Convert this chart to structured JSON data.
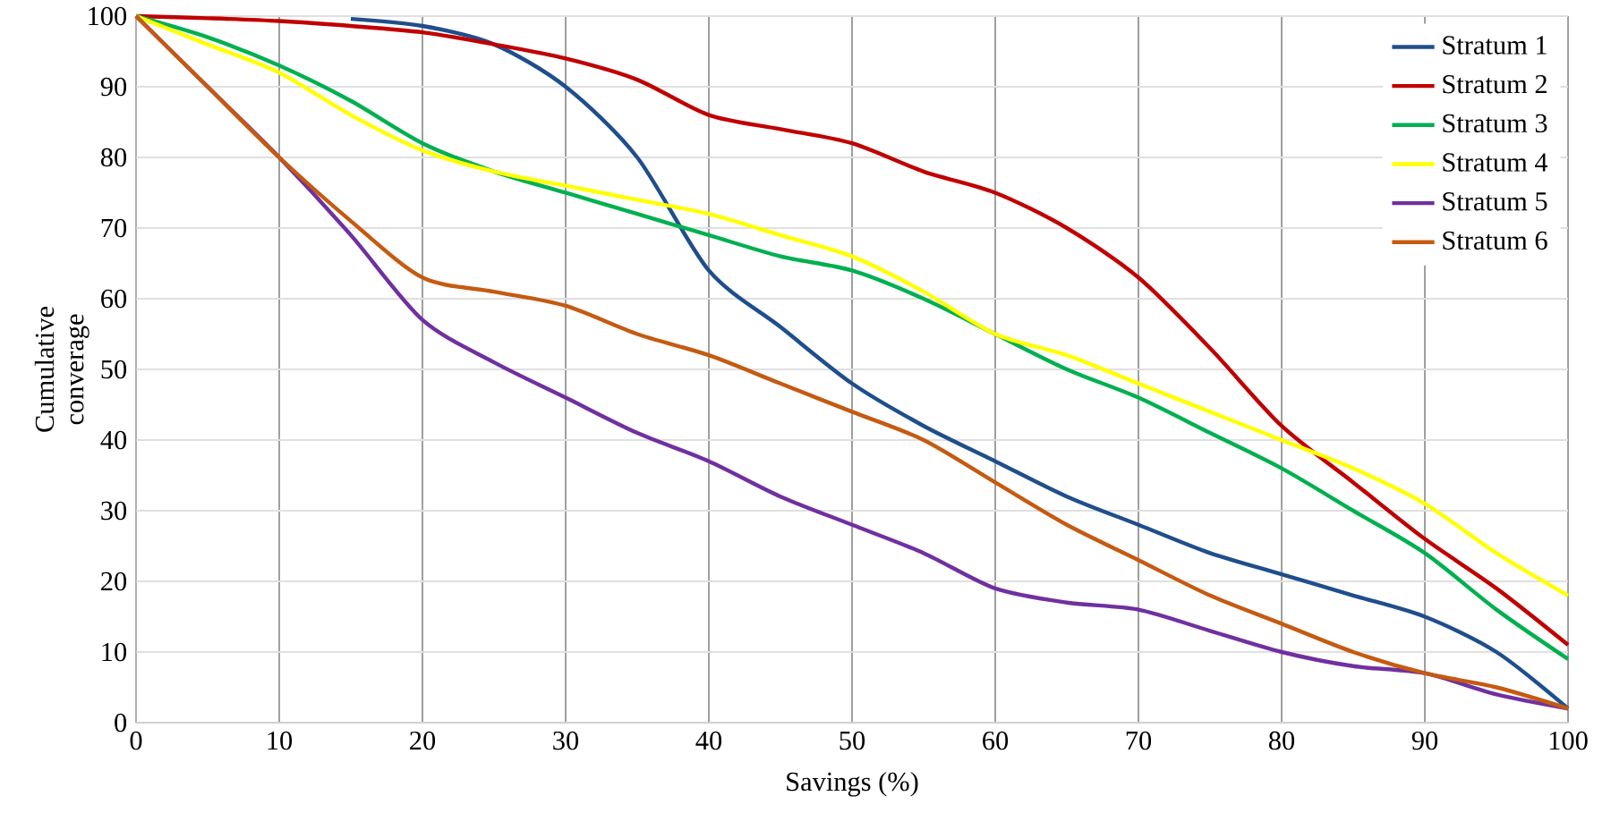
{
  "chart_data": {
    "type": "line",
    "xlabel": "Savings (%)",
    "ylabel": "Cumulative converage",
    "x": [
      0,
      5,
      10,
      15,
      20,
      25,
      30,
      35,
      40,
      45,
      50,
      55,
      60,
      65,
      70,
      75,
      80,
      85,
      90,
      95,
      100
    ],
    "series": [
      {
        "name": "Stratum 1",
        "color": "#1f4e8c",
        "values": [
          null,
          null,
          null,
          99.6,
          98.6,
          96,
          90,
          80,
          64,
          56,
          48,
          42,
          37,
          32,
          28,
          24,
          21,
          18,
          15,
          10,
          2
        ]
      },
      {
        "name": "Stratum 2",
        "color": "#c00000",
        "values": [
          100,
          99.7,
          99.3,
          98.6,
          97.7,
          96,
          94,
          91,
          86,
          84,
          82,
          78,
          75,
          70,
          63,
          53,
          42,
          34,
          26,
          19,
          11
        ]
      },
      {
        "name": "Stratum 3",
        "color": "#00b050",
        "values": [
          100,
          97,
          93,
          88,
          82,
          78,
          75,
          72,
          69,
          66,
          64,
          60,
          55,
          50,
          46,
          41,
          36,
          30,
          24,
          16,
          9
        ]
      },
      {
        "name": "Stratum 4",
        "color": "#ffff00",
        "values": [
          100,
          96,
          92,
          86,
          81,
          78,
          76,
          74,
          72,
          69,
          66,
          61,
          55,
          52,
          48,
          44,
          40,
          36,
          31,
          24,
          18
        ]
      },
      {
        "name": "Stratum 5",
        "color": "#7030a0",
        "values": [
          100,
          90,
          80,
          69,
          57,
          51,
          46,
          41,
          37,
          32,
          28,
          24,
          19,
          17,
          16,
          13,
          10,
          8,
          7,
          4,
          2
        ]
      },
      {
        "name": "Stratum 6",
        "color": "#c55a11",
        "values": [
          100,
          90,
          80,
          71,
          63,
          61,
          59,
          55,
          52,
          48,
          44,
          40,
          34,
          28,
          23,
          18,
          14,
          10,
          7,
          5,
          2
        ]
      }
    ],
    "xlim": [
      0,
      100
    ],
    "ylim": [
      0,
      100
    ],
    "xticks": [
      0,
      10,
      20,
      30,
      40,
      50,
      60,
      70,
      80,
      90,
      100
    ],
    "yticks": [
      0,
      10,
      20,
      30,
      40,
      50,
      60,
      70,
      80,
      90,
      100
    ],
    "grid": true,
    "legend": "top right",
    "line_style": "solid"
  }
}
